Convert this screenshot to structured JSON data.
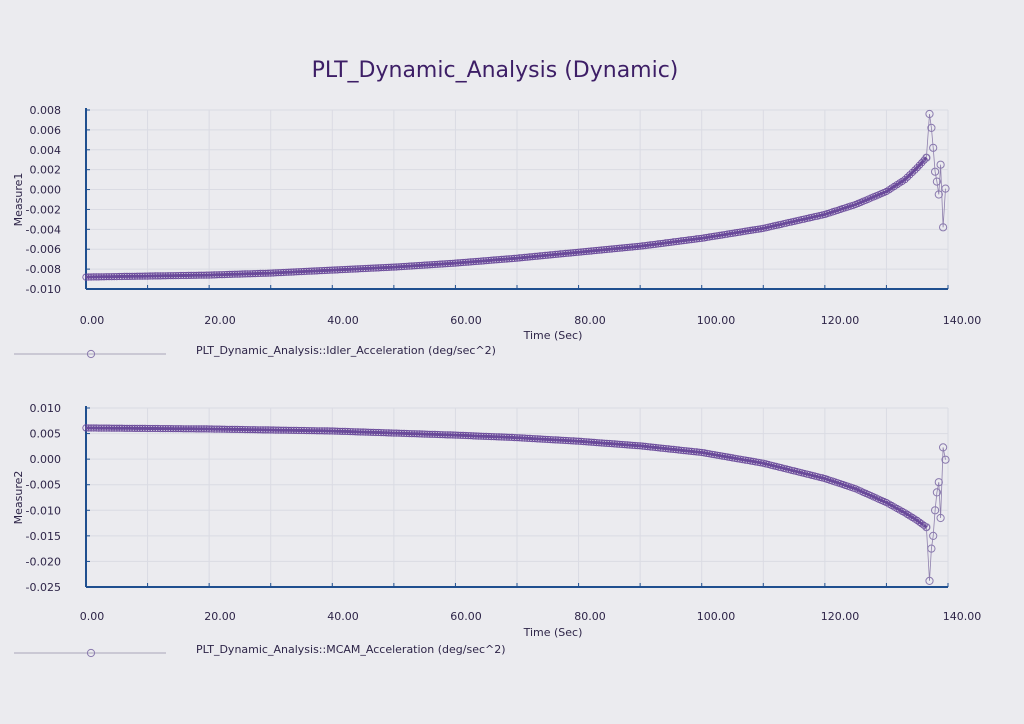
{
  "title": "PLT_Dynamic_Analysis (Dynamic)",
  "colors": {
    "series": "#6a4a9a",
    "axis": "#1f4f8f",
    "grid": "#dadbe3",
    "background": "#ebebef"
  },
  "chart_data": [
    {
      "type": "line",
      "xlabel": "Time (Sec)",
      "ylabel": "Measure1",
      "xlim": [
        0,
        140
      ],
      "ylim": [
        -0.01,
        0.008
      ],
      "xticks": [
        "0.00",
        "20.00",
        "40.00",
        "60.00",
        "80.00",
        "100.00",
        "120.00",
        "140.00"
      ],
      "yticks": [
        "0.008",
        "0.006",
        "0.004",
        "0.002",
        "0.000",
        "-0.002",
        "-0.004",
        "-0.006",
        "-0.008",
        "-0.010"
      ],
      "legend": "PLT_Dynamic_Analysis::Idler_Acceleration (deg/sec^2)",
      "grid": true,
      "series": [
        {
          "name": "PLT_Dynamic_Analysis::Idler_Acceleration (deg/sec^2)",
          "x": [
            0,
            10,
            20,
            30,
            40,
            50,
            60,
            70,
            80,
            90,
            100,
            110,
            120,
            125,
            130,
            133,
            135,
            136.5,
            137.0,
            137.3,
            137.6,
            137.9,
            138.2,
            138.5,
            138.8,
            139.2,
            139.6
          ],
          "y": [
            -0.0088,
            -0.0087,
            -0.0086,
            -0.0084,
            -0.0081,
            -0.0078,
            -0.0074,
            -0.0069,
            -0.0063,
            -0.0057,
            -0.0049,
            -0.0039,
            -0.0025,
            -0.0015,
            -0.0002,
            0.001,
            0.0022,
            0.0032,
            0.0076,
            0.0062,
            0.0042,
            0.0018,
            0.0008,
            -0.0005,
            0.0025,
            -0.0038,
            0.0001
          ]
        }
      ]
    },
    {
      "type": "line",
      "xlabel": "Time (Sec)",
      "ylabel": "Measure2",
      "xlim": [
        0,
        140
      ],
      "ylim": [
        -0.025,
        0.01
      ],
      "xticks": [
        "0.00",
        "20.00",
        "40.00",
        "60.00",
        "80.00",
        "100.00",
        "120.00",
        "140.00"
      ],
      "yticks": [
        "0.010",
        "0.005",
        "0.000",
        "-0.005",
        "-0.010",
        "-0.015",
        "-0.020",
        "-0.025"
      ],
      "legend": "PLT_Dynamic_Analysis::MCAM_Acceleration (deg/sec^2)",
      "grid": true,
      "series": [
        {
          "name": "PLT_Dynamic_Analysis::MCAM_Acceleration (deg/sec^2)",
          "x": [
            0,
            10,
            20,
            30,
            40,
            50,
            60,
            70,
            80,
            90,
            100,
            110,
            120,
            125,
            130,
            133,
            135,
            136.5,
            137.0,
            137.3,
            137.6,
            137.9,
            138.2,
            138.5,
            138.8,
            139.2,
            139.6
          ],
          "y": [
            0.0061,
            0.006,
            0.0059,
            0.0057,
            0.0055,
            0.0051,
            0.0047,
            0.0042,
            0.0035,
            0.0026,
            0.0013,
            -0.0008,
            -0.0038,
            -0.0058,
            -0.0085,
            -0.0105,
            -0.012,
            -0.0133,
            -0.0238,
            -0.0175,
            -0.015,
            -0.01,
            -0.0065,
            -0.0045,
            -0.0115,
            0.0023,
            -0.0001
          ]
        }
      ]
    }
  ]
}
